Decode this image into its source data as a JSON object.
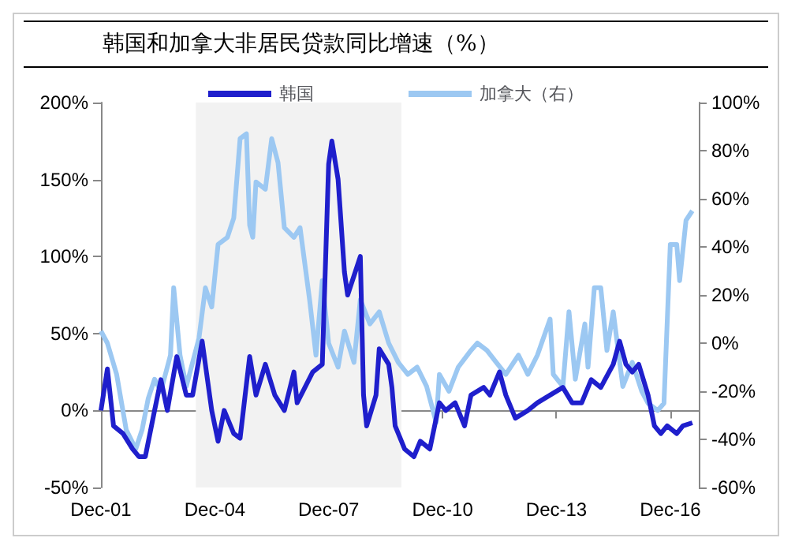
{
  "chart_data": {
    "type": "line",
    "title": "韩国和加拿大非居民贷款同比增速（%）",
    "xlim": [
      "2001-12",
      "2017-09"
    ],
    "xticks": [
      {
        "value": "2001-12",
        "label": "Dec-01"
      },
      {
        "value": "2004-12",
        "label": "Dec-04"
      },
      {
        "value": "2007-12",
        "label": "Dec-07"
      },
      {
        "value": "2010-12",
        "label": "Dec-10"
      },
      {
        "value": "2013-12",
        "label": "Dec-13"
      },
      {
        "value": "2016-12",
        "label": "Dec-16"
      }
    ],
    "ylim": [
      -50,
      200
    ],
    "yticks": [
      {
        "value": -50,
        "label": "-50%"
      },
      {
        "value": 0,
        "label": "0%"
      },
      {
        "value": 50,
        "label": "50%"
      },
      {
        "value": 100,
        "label": "100%"
      },
      {
        "value": 150,
        "label": "150%"
      },
      {
        "value": 200,
        "label": "200%"
      }
    ],
    "y2lim": [
      -60,
      100
    ],
    "y2ticks": [
      {
        "value": -60,
        "label": "-60%"
      },
      {
        "value": -40,
        "label": "-40%"
      },
      {
        "value": -20,
        "label": "-20%"
      },
      {
        "value": 0,
        "label": "0%"
      },
      {
        "value": 20,
        "label": "20%"
      },
      {
        "value": 40,
        "label": "40%"
      },
      {
        "value": 60,
        "label": "60%"
      },
      {
        "value": 80,
        "label": "80%"
      },
      {
        "value": 100,
        "label": "100%"
      }
    ],
    "legend": "top",
    "marker": "none",
    "line_style": "solid",
    "bands": [
      {
        "axis": "x",
        "from": "2004-06",
        "to": "2009-11",
        "color": "#f2f2f2"
      }
    ],
    "series": [
      {
        "name": "韩国",
        "color": "#1f1fcc",
        "x": [
          "2001-12",
          "2002-02",
          "2002-04",
          "2002-07",
          "2002-10",
          "2002-12",
          "2003-02",
          "2003-05",
          "2003-07",
          "2003-09",
          "2003-12",
          "2004-03",
          "2004-05",
          "2004-08",
          "2004-11",
          "2005-01",
          "2005-03",
          "2005-06",
          "2005-08",
          "2005-11",
          "2006-01",
          "2006-04",
          "2006-07",
          "2006-10",
          "2007-01",
          "2007-02",
          "2007-07",
          "2007-10",
          "2007-12",
          "2008-01",
          "2008-03",
          "2008-05",
          "2008-06",
          "2008-10",
          "2008-11",
          "2008-12",
          "2009-03",
          "2009-04",
          "2009-07",
          "2009-08",
          "2009-09",
          "2009-12",
          "2010-03",
          "2010-05",
          "2010-08",
          "2010-11",
          "2011-01",
          "2011-04",
          "2011-07",
          "2011-09",
          "2012-01",
          "2012-03",
          "2012-06",
          "2012-08",
          "2012-11",
          "2013-03",
          "2013-06",
          "2013-10",
          "2014-02",
          "2014-05",
          "2014-08",
          "2014-11",
          "2015-02",
          "2015-06",
          "2015-08",
          "2015-10",
          "2015-12",
          "2016-02",
          "2016-05",
          "2016-07",
          "2016-09",
          "2016-11",
          "2017-02",
          "2017-04",
          "2017-07"
        ],
        "values": [
          0,
          27,
          -10,
          -15,
          -25,
          -30,
          -30,
          0,
          20,
          0,
          35,
          10,
          10,
          45,
          0,
          -20,
          0,
          -15,
          -18,
          35,
          10,
          30,
          10,
          0,
          25,
          5,
          25,
          30,
          160,
          175,
          150,
          90,
          75,
          100,
          10,
          -10,
          10,
          40,
          30,
          15,
          -10,
          -25,
          -30,
          -20,
          -25,
          5,
          0,
          5,
          -10,
          10,
          15,
          10,
          25,
          10,
          -5,
          0,
          5,
          10,
          15,
          5,
          5,
          20,
          15,
          30,
          45,
          30,
          25,
          30,
          10,
          -10,
          -15,
          -10,
          -15,
          -10,
          -8
        ]
      },
      {
        "name": "加拿大（右）",
        "color": "#9cc8f2",
        "axis": "y2",
        "x": [
          "2001-12",
          "2002-02",
          "2002-05",
          "2002-08",
          "2002-11",
          "2003-01",
          "2003-03",
          "2003-05",
          "2003-07",
          "2003-10",
          "2003-11",
          "2004-01",
          "2004-03",
          "2004-07",
          "2004-09",
          "2004-11",
          "2005-01",
          "2005-04",
          "2005-06",
          "2005-08",
          "2005-10",
          "2005-11",
          "2005-12",
          "2006-01",
          "2006-04",
          "2006-06",
          "2006-08",
          "2006-10",
          "2007-01",
          "2007-03",
          "2007-06",
          "2007-08",
          "2007-10",
          "2007-12",
          "2008-03",
          "2008-05",
          "2008-08",
          "2008-10",
          "2009-01",
          "2009-04",
          "2009-07",
          "2009-10",
          "2010-01",
          "2010-04",
          "2010-07",
          "2010-10",
          "2010-11",
          "2011-02",
          "2011-05",
          "2011-09",
          "2011-11",
          "2012-02",
          "2012-05",
          "2012-08",
          "2012-12",
          "2013-03",
          "2013-06",
          "2013-10",
          "2013-11",
          "2014-02",
          "2014-04",
          "2014-06",
          "2014-09",
          "2014-10",
          "2014-12",
          "2015-02",
          "2015-04",
          "2015-06",
          "2015-09",
          "2015-12",
          "2016-03",
          "2016-05",
          "2016-08",
          "2016-10",
          "2016-12",
          "2017-02",
          "2017-03",
          "2017-05",
          "2017-07"
        ],
        "values": [
          5,
          0,
          -13,
          -36,
          -44,
          -36,
          -23,
          -15,
          -20,
          -5,
          23,
          -5,
          -18,
          2,
          23,
          15,
          41,
          44,
          52,
          85,
          87,
          49,
          44,
          67,
          64,
          85,
          75,
          48,
          44,
          48,
          18,
          -5,
          26,
          0,
          -10,
          5,
          -8,
          18,
          8,
          13,
          0,
          -8,
          -13,
          -10,
          -18,
          -33,
          -13,
          -20,
          -10,
          -3,
          0,
          -3,
          -8,
          -13,
          -5,
          -13,
          -5,
          10,
          -13,
          -18,
          13,
          -15,
          8,
          -10,
          23,
          23,
          -3,
          13,
          -18,
          -8,
          -20,
          -25,
          -28,
          -25,
          41,
          41,
          26,
          51,
          55
        ]
      }
    ]
  }
}
